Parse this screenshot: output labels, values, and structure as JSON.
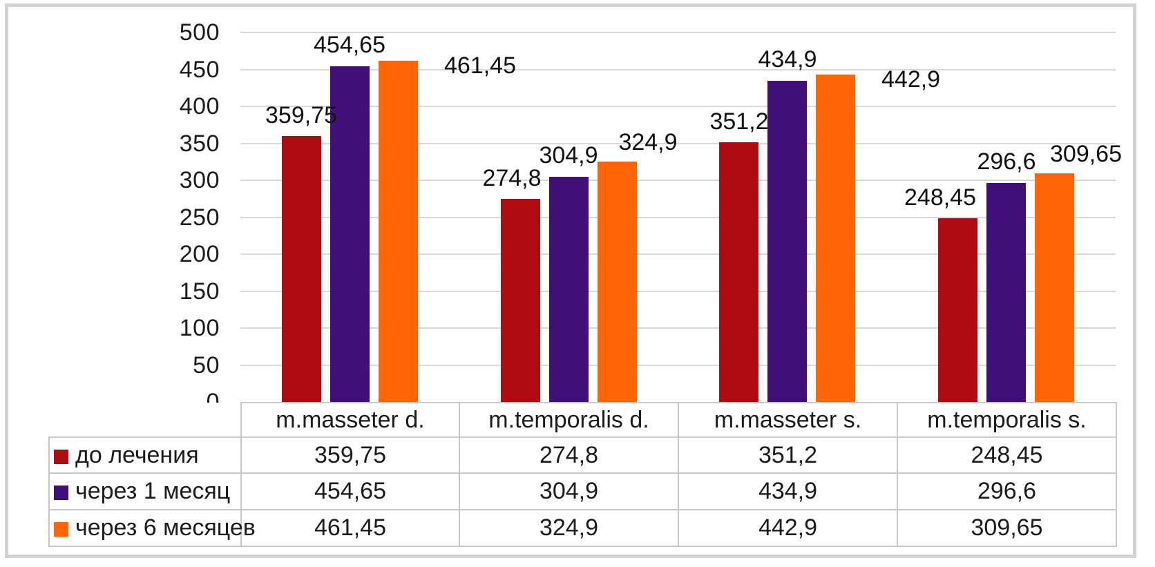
{
  "chart_data": {
    "type": "bar",
    "title": "",
    "xlabel": "",
    "ylabel": "",
    "categories": [
      "m.masseter d.",
      "m.temporalis d.",
      "m.masseter s.",
      "m.temporalis s."
    ],
    "series": [
      {
        "name": "до лечения",
        "color": "#b00b10",
        "values": [
          359.75,
          274.8,
          351.2,
          248.45
        ],
        "labels": [
          "359,75",
          "274,8",
          "351,2",
          "248,45"
        ]
      },
      {
        "name": "через 1 месяц",
        "color": "#3f1078",
        "values": [
          454.65,
          304.9,
          434.9,
          296.6
        ],
        "labels": [
          "454,65",
          "304,9",
          "434,9",
          "296,6"
        ]
      },
      {
        "name": "через 6 месяцев",
        "color": "#ff6505",
        "values": [
          461.45,
          324.9,
          442.9,
          309.65
        ],
        "labels": [
          "461,45",
          "324,9",
          "442,9",
          "309,65"
        ]
      }
    ],
    "ylim": [
      0,
      500
    ],
    "ytick_step": 50,
    "yticks": [
      "500",
      "450",
      "400",
      "350",
      "300",
      "250",
      "200",
      "150",
      "100",
      "50",
      "0"
    ],
    "grid": true,
    "decimal_separator": ",",
    "legend_position": "data-table-left-column",
    "data_table_shown": true
  },
  "colors": {
    "background": "#ffffff",
    "frame_border": "#d2d2d2",
    "gridline": "#d9d9d9",
    "table_border": "#c8c8c8",
    "text": "#1c1c1c"
  }
}
